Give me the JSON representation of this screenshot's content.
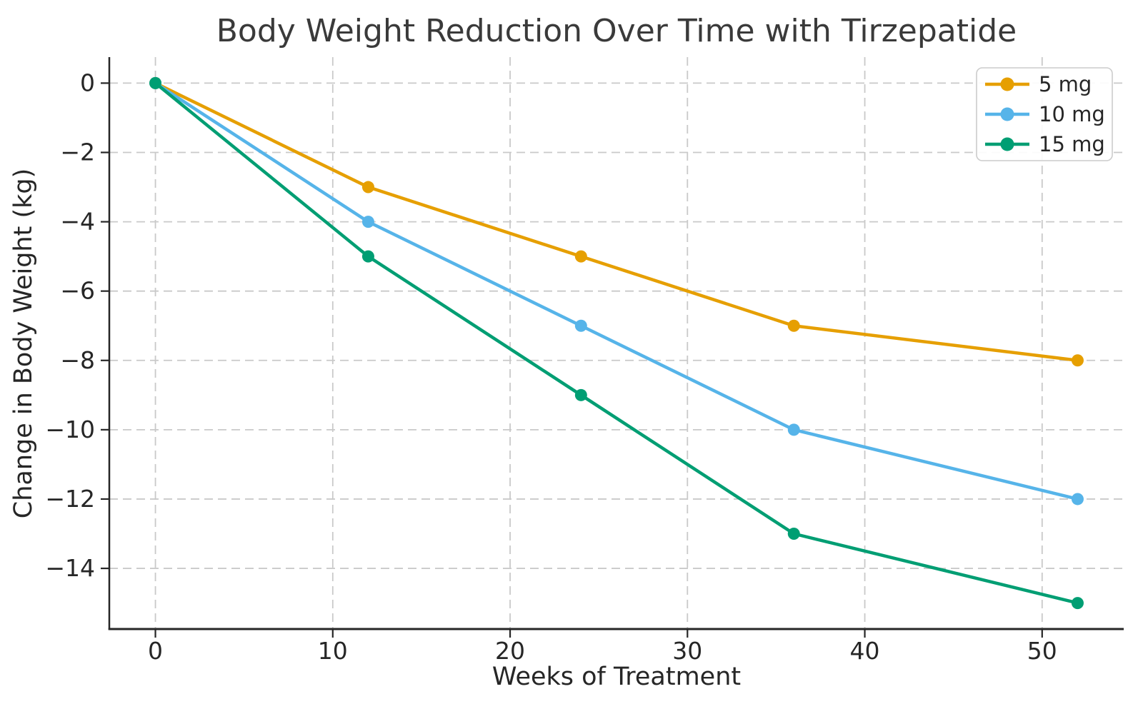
{
  "chart_data": {
    "type": "line",
    "title": "Body Weight Reduction Over Time with Tirzepatide",
    "xlabel": "Weeks of Treatment",
    "ylabel": "Change in Body Weight (kg)",
    "x": [
      0,
      12,
      24,
      36,
      52
    ],
    "series": [
      {
        "name": "5 mg",
        "color": "#E69F00",
        "values": [
          0,
          -3,
          -5,
          -7,
          -8
        ]
      },
      {
        "name": "10 mg",
        "color": "#56B4E9",
        "values": [
          0,
          -4,
          -7,
          -10,
          -12
        ]
      },
      {
        "name": "15 mg",
        "color": "#009E73",
        "values": [
          0,
          -5,
          -9,
          -13,
          -15
        ]
      }
    ],
    "xticks": [
      0,
      10,
      20,
      30,
      40,
      50
    ],
    "yticks": [
      0,
      -2,
      -4,
      -6,
      -8,
      -10,
      -12,
      -14
    ],
    "xtick_labels": [
      "0",
      "10",
      "20",
      "30",
      "40",
      "50"
    ],
    "ytick_labels": [
      "0",
      "−2",
      "−4",
      "−6",
      "−8",
      "−10",
      "−12",
      "−14"
    ],
    "xlim": [
      -2.6,
      54.6
    ],
    "ylim": [
      -15.75,
      0.75
    ],
    "grid": true,
    "legend": {
      "position": "upper right",
      "labels": [
        "5 mg",
        "10 mg",
        "15 mg"
      ]
    },
    "style": {
      "grid_color": "#c9c9c9",
      "axis_color": "#262626",
      "legend_border_color": "#cccccc",
      "background": "#ffffff"
    }
  }
}
